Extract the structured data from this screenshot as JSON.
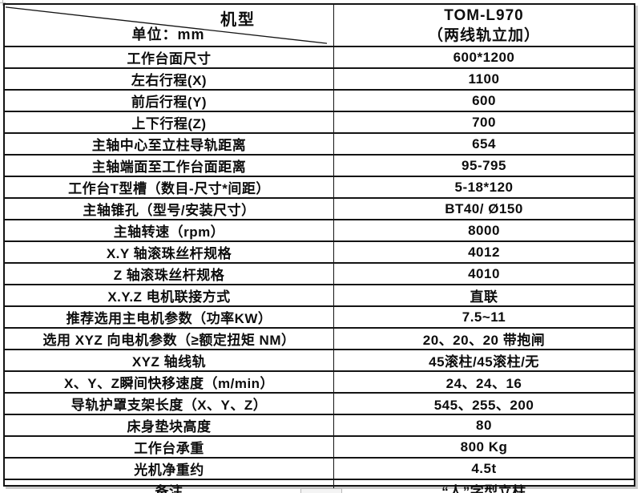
{
  "header": {
    "corner_top_label": "机型",
    "corner_bottom_label": "单位：mm",
    "model_line1": "TOM-L970",
    "model_line2": "（两线轨立加）"
  },
  "table": {
    "rows": [
      {
        "label": "工作台面尺寸",
        "value": "600*1200"
      },
      {
        "label": "左右行程(X)",
        "value": "1100"
      },
      {
        "label": "前后行程(Y)",
        "value": "600"
      },
      {
        "label": "上下行程(Z)",
        "value": "700"
      },
      {
        "label": "主轴中心至立柱导轨距离",
        "value": "654"
      },
      {
        "label": "主轴端面至工作台面距离",
        "value": "95-795"
      },
      {
        "label": "工作台T型槽（数目-尺寸*间距）",
        "value": "5-18*120"
      },
      {
        "label": "主轴锥孔（型号/安装尺寸）",
        "value": "BT40/ Ø150"
      },
      {
        "label": "主轴转速（rpm）",
        "value": "8000"
      },
      {
        "label": "X.Y 轴滚珠丝杆规格",
        "value": "4012"
      },
      {
        "label": "Z 轴滚珠丝杆规格",
        "value": "4010"
      },
      {
        "label": "X.Y.Z 电机联接方式",
        "value": "直联"
      },
      {
        "label": "推荐选用主电机参数（功率KW）",
        "value": "7.5~11"
      },
      {
        "label": "选用 XYZ 向电机参数（≥额定扭矩 NM）",
        "value": "20、20、20 带抱闸"
      },
      {
        "label": "XYZ 轴线轨",
        "value": "45滚柱/45滚柱/无"
      },
      {
        "label": "X、Y、Z瞬间快移速度（m/min）",
        "value": "24、24、16"
      },
      {
        "label": "导轨护罩支架长度（X、Y、Z）",
        "value": "545、255、200"
      },
      {
        "label": "床身垫块高度",
        "value": "80"
      },
      {
        "label": "工作台承重",
        "value": "800 Kg"
      },
      {
        "label": "光机净重约",
        "value": "4.5t"
      },
      {
        "label": "备注",
        "value": "“人”字型立柱"
      }
    ]
  },
  "colors": {
    "border": "#141414",
    "text": "#0d0d0d",
    "background": "#ffffff",
    "shadow": "#c9c9c9"
  }
}
